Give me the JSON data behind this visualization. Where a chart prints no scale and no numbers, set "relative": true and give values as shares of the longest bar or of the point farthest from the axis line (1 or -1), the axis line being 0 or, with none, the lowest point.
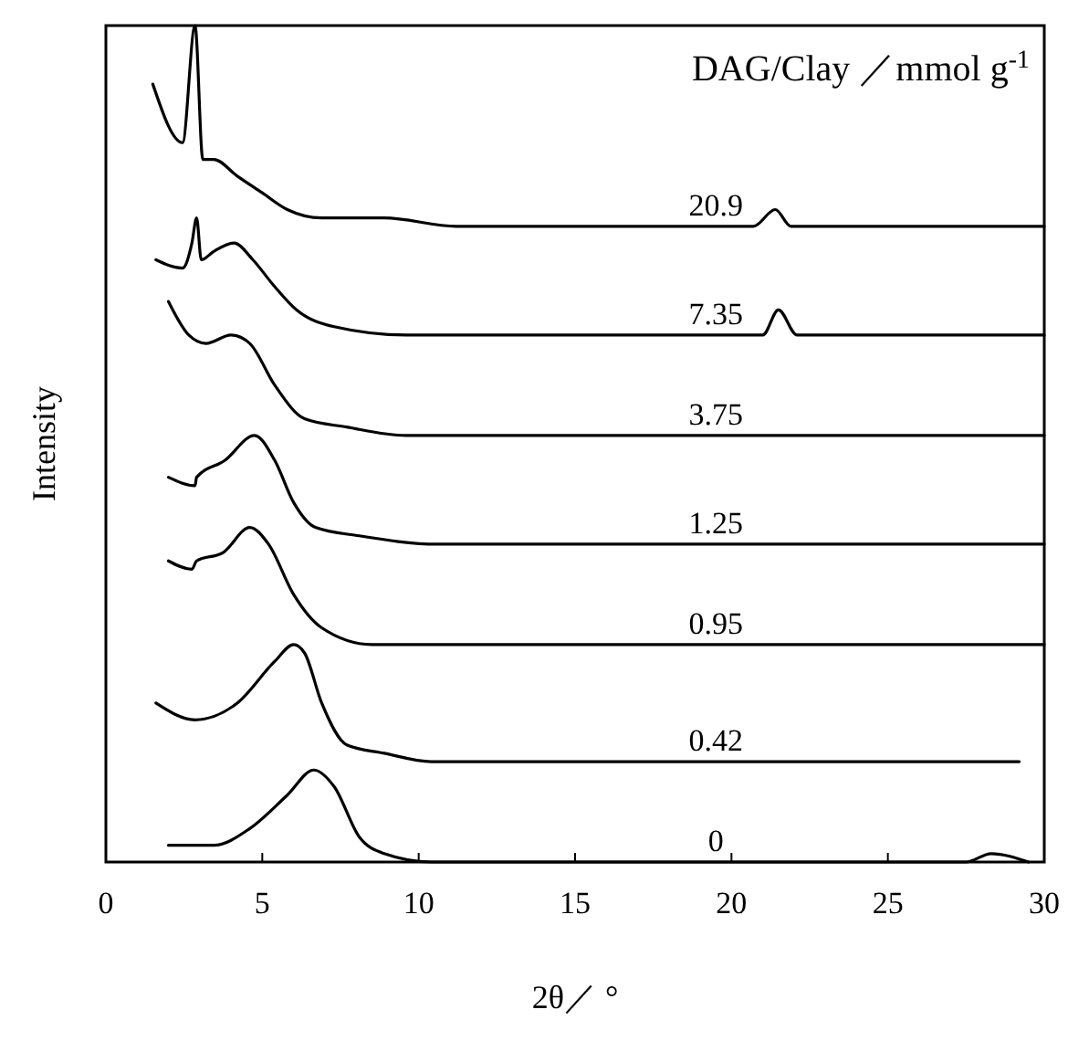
{
  "chart_data": {
    "type": "line",
    "relative": true,
    "xlabel": "2θ／ °",
    "ylabel": "Intensity",
    "legend_title": "DAG/Clay ／mmol g$^{-1}$",
    "xlim": [
      0,
      30
    ],
    "xticks": [
      0,
      5,
      10,
      15,
      20,
      25,
      30
    ],
    "grid": false,
    "marker": "none",
    "line_style": "solid",
    "series": [
      {
        "name": "20.9",
        "color": "#000000",
        "x": [
          1.5,
          2.45,
          2.85,
          3.1,
          3.45,
          4.2,
          5.0,
          5.8,
          6.9,
          8.9,
          11.2,
          20.7,
          21.4,
          21.9,
          23,
          30
        ],
        "values": [
          0.93,
          0.86,
          1.0,
          0.84,
          0.84,
          0.82,
          0.8,
          0.78,
          0.77,
          0.77,
          0.76,
          0.76,
          0.78,
          0.76,
          0.76,
          0.76
        ]
      },
      {
        "name": "7.35",
        "color": "#000000",
        "x": [
          1.6,
          2.45,
          2.75,
          2.9,
          3.05,
          3.45,
          4.1,
          4.7,
          5.35,
          6.1,
          7.3,
          9.6,
          13.1,
          21.0,
          21.5,
          22.1,
          30
        ],
        "values": [
          0.72,
          0.71,
          0.74,
          0.77,
          0.72,
          0.73,
          0.74,
          0.72,
          0.69,
          0.66,
          0.64,
          0.63,
          0.63,
          0.63,
          0.66,
          0.63,
          0.63
        ]
      },
      {
        "name": "3.75",
        "color": "#000000",
        "x": [
          2.0,
          2.65,
          3.2,
          4.0,
          4.6,
          5.4,
          6.35,
          7.7,
          9.6,
          30
        ],
        "values": [
          0.67,
          0.63,
          0.62,
          0.63,
          0.62,
          0.57,
          0.53,
          0.52,
          0.51,
          0.51
        ]
      },
      {
        "name": "1.25",
        "color": "#000000",
        "x": [
          2.0,
          2.85,
          2.9,
          3.8,
          4.75,
          5.4,
          6.0,
          6.7,
          8.1,
          10.6,
          30
        ],
        "values": [
          0.46,
          0.45,
          0.46,
          0.48,
          0.51,
          0.48,
          0.43,
          0.4,
          0.39,
          0.38,
          0.38
        ]
      },
      {
        "name": "0.95",
        "color": "#000000",
        "x": [
          2.0,
          2.75,
          2.9,
          3.75,
          4.6,
          5.2,
          6.0,
          6.9,
          8.5,
          10.4,
          30
        ],
        "values": [
          0.36,
          0.35,
          0.36,
          0.37,
          0.4,
          0.38,
          0.32,
          0.28,
          0.26,
          0.26,
          0.26
        ]
      },
      {
        "name": "0.42",
        "color": "#000000",
        "x": [
          1.6,
          2.85,
          4.2,
          5.4,
          6.0,
          6.35,
          6.9,
          7.7,
          8.9,
          10.4,
          29.2
        ],
        "values": [
          0.19,
          0.17,
          0.19,
          0.24,
          0.26,
          0.25,
          0.19,
          0.14,
          0.13,
          0.12,
          0.12
        ]
      },
      {
        "name": "0",
        "color": "#000000",
        "x": [
          2.0,
          3.45,
          4.6,
          5.8,
          6.65,
          7.3,
          8.1,
          8.9,
          10.4,
          27.5,
          28.3,
          29.5
        ],
        "values": [
          0.02,
          0.02,
          0.04,
          0.08,
          0.11,
          0.09,
          0.03,
          0.01,
          0.0,
          0.0,
          0.01,
          0.0
        ]
      }
    ]
  }
}
